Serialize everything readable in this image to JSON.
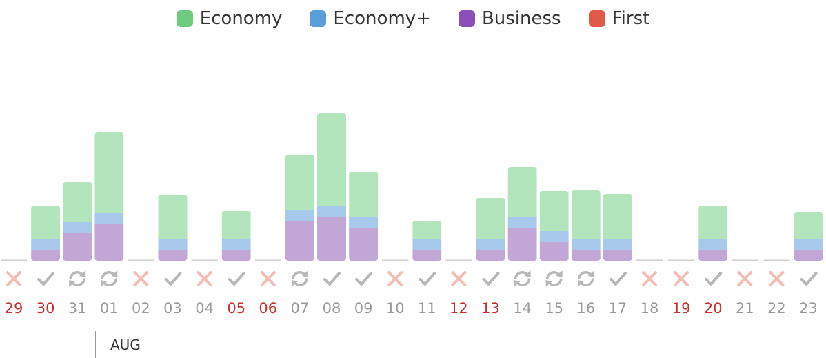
{
  "legend": [
    {
      "label": "Economy",
      "color": "#6dcc7e"
    },
    {
      "label": "Economy+",
      "color": "#5a9ddb"
    },
    {
      "label": "Business",
      "color": "#8a4fb8"
    },
    {
      "label": "First",
      "color": "#e05a47"
    }
  ],
  "chart_data": {
    "type": "bar",
    "stacked": true,
    "categories": [
      "29",
      "30",
      "31",
      "01",
      "02",
      "03",
      "04",
      "05",
      "06",
      "07",
      "08",
      "09",
      "10",
      "11",
      "12",
      "13",
      "14",
      "15",
      "16",
      "17",
      "18",
      "19",
      "20",
      "21",
      "22",
      "23"
    ],
    "category_label_red": [
      true,
      true,
      false,
      false,
      false,
      false,
      false,
      true,
      true,
      false,
      false,
      false,
      false,
      false,
      true,
      true,
      false,
      false,
      false,
      false,
      false,
      true,
      true,
      false,
      false,
      false
    ],
    "status": [
      "cross",
      "check",
      "refresh",
      "refresh",
      "cross",
      "check",
      "cross",
      "check",
      "cross",
      "refresh",
      "check",
      "check",
      "cross",
      "check",
      "cross",
      "check",
      "refresh",
      "refresh",
      "refresh",
      "check",
      "cross",
      "cross",
      "check",
      "cross",
      "cross",
      "check"
    ],
    "series": [
      {
        "name": "Business",
        "color": "#c1a6d6",
        "values": [
          0,
          16,
          40,
          53,
          0,
          16,
          0,
          16,
          0,
          58,
          63,
          48,
          0,
          16,
          0,
          16,
          48,
          27,
          16,
          16,
          0,
          0,
          16,
          0,
          0,
          16
        ]
      },
      {
        "name": "Economy+",
        "color": "#a7c9ec",
        "values": [
          0,
          16,
          16,
          16,
          0,
          16,
          0,
          16,
          0,
          16,
          16,
          16,
          0,
          16,
          0,
          16,
          16,
          16,
          16,
          16,
          0,
          0,
          16,
          0,
          0,
          16
        ]
      },
      {
        "name": "Economy",
        "color": "#b2e5bc",
        "values": [
          0,
          48,
          58,
          117,
          0,
          64,
          0,
          40,
          0,
          80,
          135,
          65,
          0,
          26,
          0,
          59,
          72,
          58,
          70,
          65,
          0,
          0,
          48,
          0,
          0,
          38
        ]
      },
      {
        "name": "First",
        "color": "#e05a47",
        "values": [
          0,
          0,
          0,
          0,
          0,
          0,
          0,
          0,
          0,
          0,
          0,
          0,
          0,
          0,
          0,
          0,
          0,
          0,
          0,
          0,
          0,
          0,
          0,
          0,
          0,
          0
        ]
      }
    ],
    "month_marker": {
      "label": "AUG",
      "at_category": "01"
    }
  }
}
